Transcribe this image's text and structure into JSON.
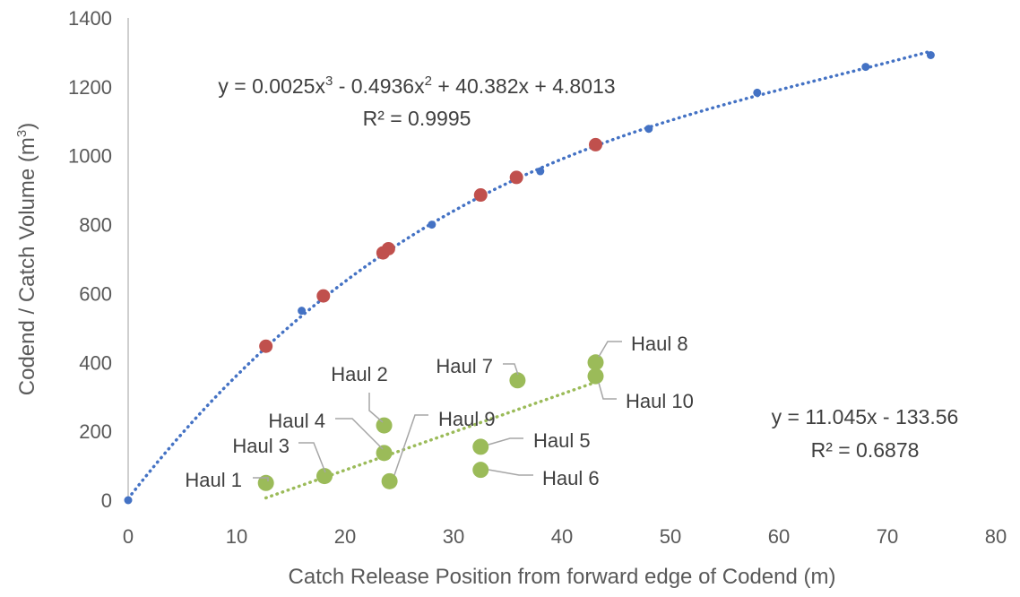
{
  "chart_data": {
    "type": "scatter",
    "title": "",
    "xlabel": "Catch Release Position from forward edge of Codend (m)",
    "ylabel_main": "Codend / Catch Volume (m",
    "ylabel_sup": "3",
    "ylabel_close": ")",
    "xlim": [
      0,
      80
    ],
    "ylim": [
      0,
      1400
    ],
    "x_ticks": [
      "0",
      "10",
      "20",
      "30",
      "40",
      "50",
      "60",
      "70",
      "80"
    ],
    "y_ticks": [
      "0",
      "200",
      "400",
      "600",
      "800",
      "1000",
      "1200",
      "1400"
    ],
    "grid": false,
    "series": [
      {
        "role": "codend-volume",
        "color": "#4472c4",
        "x": [
          0,
          16,
          28,
          38,
          48,
          58,
          68,
          74
        ],
        "y": [
          0,
          550,
          800,
          955,
          1078,
          1183,
          1258,
          1292
        ]
      },
      {
        "role": "codend-volume-at-release",
        "color": "#c0504d",
        "x": [
          12.7,
          18,
          23.5,
          24,
          32.5,
          35.8,
          43.1
        ],
        "y": [
          447,
          593,
          718,
          730,
          886,
          937,
          1032
        ]
      },
      {
        "role": "catch-volume",
        "color": "#9bbb59",
        "x": [
          12.7,
          23.6,
          18.1,
          23.6,
          32.5,
          32.5,
          35.9,
          43.1,
          24.1,
          43.1
        ],
        "y": [
          50,
          217,
          70,
          137,
          155,
          88,
          348,
          400,
          55,
          360
        ],
        "labels": [
          "Haul 1",
          "Haul 2",
          "Haul 3",
          "Haul 4",
          "Haul 5",
          "Haul 6",
          "Haul 7",
          "Haul 8",
          "Haul 9",
          "Haul 10"
        ]
      }
    ],
    "trendlines": [
      {
        "type": "polynomial",
        "color": "#4472c4",
        "coefficients": [
          4.8013,
          40.382,
          -0.4936,
          0.0025
        ],
        "x_range": [
          0,
          74
        ],
        "equation_parts": [
          "y = 0.0025x",
          "3",
          " - 0.4936x",
          "2",
          " + 40.382x + 4.8013"
        ],
        "r2": "R² = 0.9995"
      },
      {
        "type": "linear",
        "color": "#9bbb59",
        "slope": 11.045,
        "intercept": -133.56,
        "x_range": [
          12.7,
          43.1
        ],
        "equation": "y = 11.045x - 133.56",
        "r2": "R² = 0.6878"
      }
    ]
  }
}
